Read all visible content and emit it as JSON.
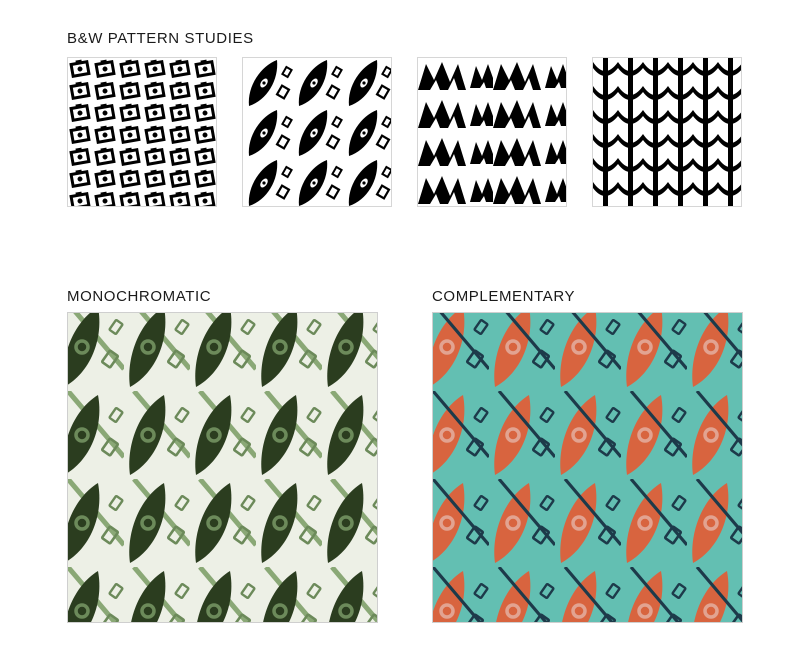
{
  "headings": {
    "bw": "B&W PATTERN STUDIES",
    "mono": "MONOCHROMATIC",
    "comp": "COMPLEMENTARY"
  },
  "patterns": {
    "bw": [
      {
        "name": "camera-motif-pattern"
      },
      {
        "name": "oar-leaf-motif-pattern"
      },
      {
        "name": "zigzag-mountain-pattern"
      },
      {
        "name": "arc-stack-pattern"
      }
    ],
    "mono": {
      "background": "#edf0e6",
      "leaf": "#2b3d1f",
      "oar": "#8aa876",
      "ring": "#6c8a5a"
    },
    "comp": {
      "background": "#63bfb2",
      "leaf": "#d8643f",
      "oar": "#1d3a4a",
      "ring": "#e2a391"
    }
  }
}
